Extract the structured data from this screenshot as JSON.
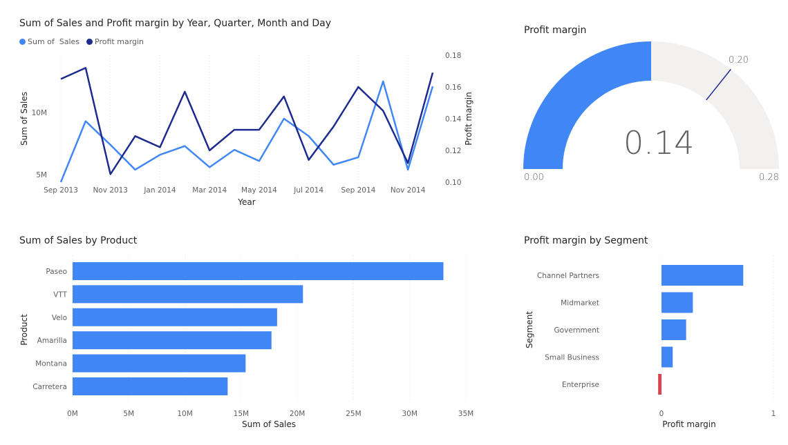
{
  "colors": {
    "sales": "#4087f5",
    "profit": "#1d2a8f",
    "negative": "#d64550",
    "gauge_bg": "#f2f1f0",
    "grid": "#e1dfdd"
  },
  "line_chart": {
    "title": "Sum of Sales and Profit margin by Year, Quarter, Month and Day"
  },
  "gauge": {
    "title": "Profit margin",
    "value_label": "0.14",
    "min_label": "0.00",
    "max_label": "0.28",
    "target_label": "0.20"
  },
  "bar_chart": {
    "title": "Sum of Sales by Product"
  },
  "segment_chart": {
    "title": "Profit margin by Segment"
  },
  "chart_data": [
    {
      "type": "line",
      "title": "Sum of Sales and Profit margin by Year, Quarter, Month and Day",
      "xlabel": "Year",
      "ylabel": "Sum of Sales",
      "y2label": "Profit margin",
      "x_ticks": [
        "Sep 2013",
        "Nov 2013",
        "Jan 2014",
        "Mar 2014",
        "May 2014",
        "Jul 2014",
        "Sep 2014",
        "Nov 2014"
      ],
      "x": [
        "2013-09-01",
        "2013-10-01",
        "2013-11-01",
        "2013-12-01",
        "2014-01-01",
        "2014-02-01",
        "2014-03-01",
        "2014-04-01",
        "2014-05-01",
        "2014-06-01",
        "2014-07-01",
        "2014-08-01",
        "2014-09-01",
        "2014-10-01",
        "2014-11-01",
        "2014-12-01"
      ],
      "y_ticks": [
        "5M",
        "10M"
      ],
      "y_ticks_values": [
        5000000,
        10000000
      ],
      "y2_ticks": [
        "0.10",
        "0.12",
        "0.14",
        "0.16",
        "0.18"
      ],
      "y2_ticks_values": [
        0.1,
        0.12,
        0.14,
        0.16,
        0.18
      ],
      "ylim": [
        4400000,
        14600000
      ],
      "y2lim": [
        0.1,
        0.18
      ],
      "legend_position": "top-left",
      "series": [
        {
          "name": "Sum of  Sales",
          "axis": "left",
          "values": [
            4400000,
            9300000,
            7400000,
            5400000,
            6600000,
            7300000,
            5600000,
            7000000,
            6100000,
            9500000,
            8100000,
            5800000,
            6400000,
            12500000,
            5400000,
            12100000
          ]
        },
        {
          "name": "Profit margin",
          "axis": "right",
          "values": [
            0.165,
            0.172,
            0.105,
            0.129,
            0.122,
            0.157,
            0.12,
            0.133,
            0.133,
            0.154,
            0.114,
            0.135,
            0.16,
            0.145,
            0.112,
            0.169
          ]
        }
      ]
    },
    {
      "type": "gauge",
      "title": "Profit margin",
      "value": 0.14,
      "min": 0.0,
      "max": 0.28,
      "target": 0.2
    },
    {
      "type": "bar",
      "orientation": "horizontal",
      "title": "Sum of Sales by Product",
      "xlabel": "Sum of Sales",
      "ylabel": "Product",
      "categories": [
        "Paseo",
        "VTT",
        "Velo",
        "Amarilla",
        "Montana",
        "Carretera"
      ],
      "values": [
        33000000,
        20500000,
        18200000,
        17700000,
        15400000,
        13800000
      ],
      "x_ticks": [
        "0M",
        "5M",
        "10M",
        "15M",
        "20M",
        "25M",
        "30M",
        "35M"
      ],
      "x_ticks_values": [
        0,
        5000000,
        10000000,
        15000000,
        20000000,
        25000000,
        30000000,
        35000000
      ],
      "xlim": [
        0,
        35000000
      ]
    },
    {
      "type": "bar",
      "orientation": "horizontal",
      "title": "Profit margin by Segment",
      "xlabel": "Profit margin",
      "ylabel": "Segment",
      "categories": [
        "Channel Partners",
        "Midmarket",
        "Government",
        "Small Business",
        "Enterprise"
      ],
      "values": [
        0.73,
        0.28,
        0.22,
        0.1,
        -0.03
      ],
      "x_ticks": [
        "0",
        "1"
      ],
      "x_ticks_values": [
        0,
        1
      ],
      "xlim": [
        -0.05,
        1
      ]
    }
  ]
}
